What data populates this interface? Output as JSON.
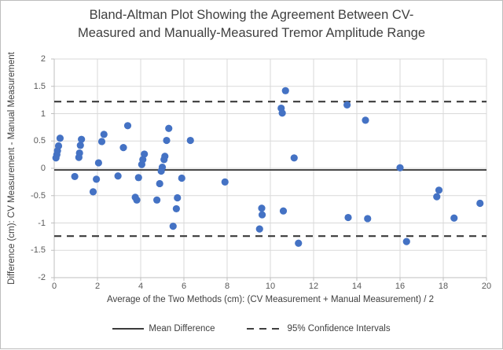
{
  "figure": {
    "title_line1": "Bland-Altman Plot Showing the Agreement Between CV-",
    "title_line2": "Measured and Manually-Measured Tremor Amplitude Range"
  },
  "chart_data": {
    "type": "scatter",
    "title": "Bland-Altman Plot Showing the Agreement Between CV-Measured and Manually-Measured Tremor Amplitude Range",
    "xlabel": "Average of the Two Methods (cm): (CV Measurement + Manual Measurement) / 2",
    "ylabel": "Difference (cm): CV Measurement - Manual Measurement",
    "xlim": [
      0,
      20
    ],
    "ylim": [
      -2,
      2
    ],
    "xticks": [
      0,
      2,
      4,
      6,
      8,
      10,
      12,
      14,
      16,
      18,
      20
    ],
    "yticks": [
      2,
      1.5,
      1,
      0.5,
      0,
      -0.5,
      -1,
      -1.5,
      -2
    ],
    "grid": true,
    "legend_position": "bottom",
    "legend": [
      "Mean Difference",
      "95% Confidence Intervals"
    ],
    "mean_difference": -0.03,
    "ci_upper": 1.22,
    "ci_lower": -1.24,
    "marker_color": "#4472C4",
    "line_color": "#3b3b3b",
    "points": [
      [
        0.08,
        0.19
      ],
      [
        0.12,
        0.25
      ],
      [
        0.15,
        0.32
      ],
      [
        0.2,
        0.41
      ],
      [
        0.27,
        0.55
      ],
      [
        0.95,
        -0.15
      ],
      [
        1.14,
        0.2
      ],
      [
        1.17,
        0.28
      ],
      [
        1.21,
        0.42
      ],
      [
        1.26,
        0.53
      ],
      [
        1.8,
        -0.43
      ],
      [
        1.95,
        -0.2
      ],
      [
        2.05,
        0.1
      ],
      [
        2.2,
        0.49
      ],
      [
        2.3,
        0.62
      ],
      [
        2.95,
        -0.14
      ],
      [
        3.2,
        0.38
      ],
      [
        3.4,
        0.78
      ],
      [
        3.75,
        -0.53
      ],
      [
        3.82,
        -0.58
      ],
      [
        3.9,
        -0.17
      ],
      [
        4.05,
        0.07
      ],
      [
        4.1,
        0.16
      ],
      [
        4.17,
        0.26
      ],
      [
        4.75,
        -0.58
      ],
      [
        4.88,
        -0.28
      ],
      [
        4.95,
        -0.05
      ],
      [
        5.0,
        0.02
      ],
      [
        5.08,
        0.16
      ],
      [
        5.12,
        0.22
      ],
      [
        5.2,
        0.51
      ],
      [
        5.3,
        0.73
      ],
      [
        5.5,
        -1.06
      ],
      [
        5.65,
        -0.74
      ],
      [
        5.7,
        -0.54
      ],
      [
        5.9,
        -0.18
      ],
      [
        6.3,
        0.51
      ],
      [
        7.9,
        -0.25
      ],
      [
        9.5,
        -1.11
      ],
      [
        9.6,
        -0.73
      ],
      [
        9.62,
        -0.85
      ],
      [
        10.5,
        1.1
      ],
      [
        10.55,
        1.01
      ],
      [
        10.7,
        1.42
      ],
      [
        10.6,
        -0.78
      ],
      [
        11.1,
        0.19
      ],
      [
        11.3,
        -1.37
      ],
      [
        13.55,
        1.16
      ],
      [
        13.6,
        -0.9
      ],
      [
        14.4,
        0.88
      ],
      [
        14.5,
        -0.92
      ],
      [
        16.0,
        0.01
      ],
      [
        16.3,
        -1.34
      ],
      [
        17.7,
        -0.52
      ],
      [
        17.8,
        -0.4
      ],
      [
        18.5,
        -0.91
      ],
      [
        19.7,
        -0.64
      ]
    ]
  }
}
